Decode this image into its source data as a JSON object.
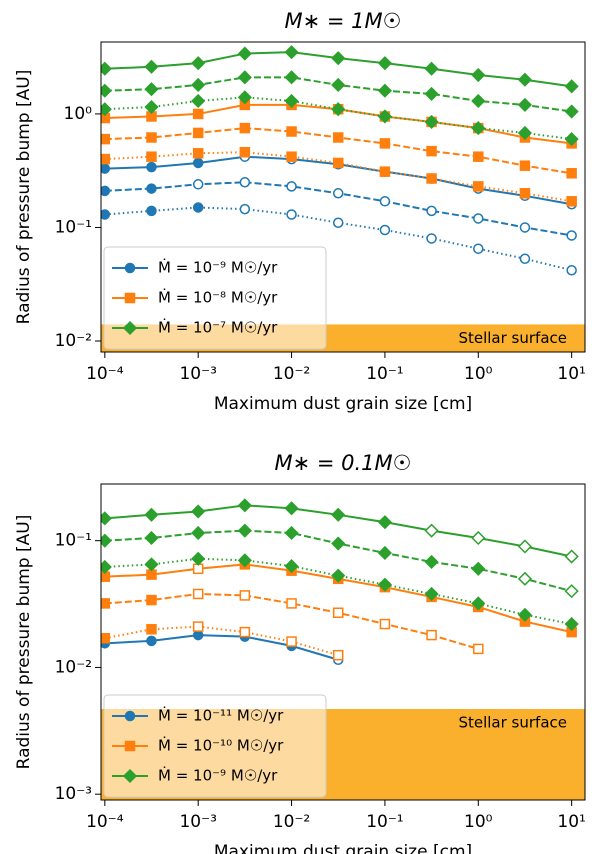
{
  "chart_data": [
    {
      "type": "line",
      "title": "M∗ = 1M☉",
      "xlabel": "Maximum dust grain size [cm]",
      "ylabel": "Radius of pressure bump [AU]",
      "xscale": "log",
      "yscale": "log",
      "legend": "lower left",
      "xlim": [
        9.1e-05,
        13.9
      ],
      "ylim": [
        0.008,
        4.3
      ],
      "xticks": [
        {
          "value": 0.0001,
          "label": "10⁻⁴"
        },
        {
          "value": 0.001,
          "label": "10⁻³"
        },
        {
          "value": 0.01,
          "label": "10⁻²"
        },
        {
          "value": 0.1,
          "label": "10⁻¹"
        },
        {
          "value": 1,
          "label": "10⁰"
        },
        {
          "value": 10,
          "label": "10¹"
        }
      ],
      "yticks": [
        {
          "value": 0.01,
          "label": "10⁻²"
        },
        {
          "value": 0.1,
          "label": "10⁻¹"
        },
        {
          "value": 1,
          "label": "10⁰"
        }
      ],
      "shaded_region": {
        "label": "Stellar surface",
        "y_max": 0.014,
        "color": "#fbb02d"
      },
      "x": [
        0.0001,
        0.000316,
        0.001,
        0.00316,
        0.01,
        0.0316,
        0.1,
        0.316,
        1,
        3.16,
        10
      ],
      "series": [
        {
          "name": "Ṁ = 10⁻⁹ M☉/yr",
          "color": "#1f77b4",
          "marker": "circle",
          "linestyle": "solid",
          "values": [
            0.33,
            0.34,
            0.37,
            0.42,
            0.4,
            0.36,
            0.31,
            0.27,
            0.22,
            0.19,
            0.16
          ],
          "filled": [
            true,
            true,
            true,
            false,
            false,
            false,
            false,
            false,
            false,
            false,
            false
          ]
        },
        {
          "color": "#1f77b4",
          "marker": "circle",
          "linestyle": "dashed",
          "values": [
            0.21,
            0.22,
            0.24,
            0.25,
            0.23,
            0.2,
            0.17,
            0.14,
            0.12,
            0.1,
            0.085
          ],
          "filled": [
            true,
            true,
            false,
            false,
            false,
            false,
            false,
            false,
            false,
            false,
            false
          ]
        },
        {
          "color": "#1f77b4",
          "marker": "circle",
          "linestyle": "dotted",
          "values": [
            0.13,
            0.14,
            0.15,
            0.145,
            0.13,
            0.11,
            0.095,
            0.08,
            0.065,
            0.053,
            0.042
          ],
          "filled": [
            true,
            true,
            true,
            false,
            false,
            false,
            false,
            false,
            false,
            false,
            false
          ]
        },
        {
          "name": "Ṁ = 10⁻⁸ M☉/yr",
          "color": "#ff7f0e",
          "marker": "square",
          "linestyle": "solid",
          "values": [
            0.92,
            0.95,
            1.0,
            1.2,
            1.2,
            1.1,
            0.95,
            0.85,
            0.75,
            0.62,
            0.55
          ],
          "filled": [
            true,
            true,
            true,
            true,
            true,
            true,
            true,
            true,
            true,
            true,
            true
          ]
        },
        {
          "color": "#ff7f0e",
          "marker": "square",
          "linestyle": "dashed",
          "values": [
            0.6,
            0.62,
            0.68,
            0.75,
            0.7,
            0.62,
            0.55,
            0.47,
            0.42,
            0.35,
            0.3
          ],
          "filled": [
            true,
            true,
            true,
            true,
            true,
            true,
            true,
            true,
            true,
            true,
            true
          ]
        },
        {
          "color": "#ff7f0e",
          "marker": "square",
          "linestyle": "dotted",
          "values": [
            0.4,
            0.42,
            0.45,
            0.46,
            0.42,
            0.37,
            0.31,
            0.27,
            0.23,
            0.2,
            0.17
          ],
          "filled": [
            true,
            true,
            true,
            true,
            true,
            true,
            true,
            true,
            true,
            true,
            true
          ]
        },
        {
          "name": "Ṁ = 10⁻⁷ M☉/yr",
          "color": "#2ca02c",
          "marker": "diamond",
          "linestyle": "solid",
          "values": [
            2.5,
            2.6,
            2.8,
            3.4,
            3.5,
            3.1,
            2.8,
            2.5,
            2.2,
            2.0,
            1.75
          ],
          "filled": [
            true,
            true,
            true,
            true,
            true,
            true,
            true,
            true,
            true,
            true,
            true
          ]
        },
        {
          "color": "#2ca02c",
          "marker": "diamond",
          "linestyle": "dashed",
          "values": [
            1.6,
            1.65,
            1.8,
            2.1,
            2.1,
            1.8,
            1.6,
            1.5,
            1.3,
            1.2,
            1.05
          ],
          "filled": [
            true,
            true,
            true,
            true,
            true,
            true,
            true,
            true,
            true,
            true,
            true
          ]
        },
        {
          "color": "#2ca02c",
          "marker": "diamond",
          "linestyle": "dotted",
          "values": [
            1.1,
            1.15,
            1.3,
            1.4,
            1.3,
            1.1,
            0.95,
            0.85,
            0.75,
            0.68,
            0.6
          ],
          "filled": [
            true,
            true,
            true,
            true,
            true,
            true,
            true,
            true,
            true,
            true,
            true
          ]
        }
      ]
    },
    {
      "type": "line",
      "title": "M∗ = 0.1M☉",
      "xlabel": "Maximum dust grain size [cm]",
      "ylabel": "Radius of pressure bump [AU]",
      "xscale": "log",
      "yscale": "log",
      "legend": "lower left",
      "xlim": [
        9.1e-05,
        13.9
      ],
      "ylim": [
        0.0009,
        0.28
      ],
      "xticks": [
        {
          "value": 0.0001,
          "label": "10⁻⁴"
        },
        {
          "value": 0.001,
          "label": "10⁻³"
        },
        {
          "value": 0.01,
          "label": "10⁻²"
        },
        {
          "value": 0.1,
          "label": "10⁻¹"
        },
        {
          "value": 1,
          "label": "10⁰"
        },
        {
          "value": 10,
          "label": "10¹"
        }
      ],
      "yticks": [
        {
          "value": 0.001,
          "label": "10⁻³"
        },
        {
          "value": 0.01,
          "label": "10⁻²"
        },
        {
          "value": 0.1,
          "label": "10⁻¹"
        }
      ],
      "shaded_region": {
        "label": "Stellar surface",
        "y_max": 0.0047,
        "color": "#fbb02d"
      },
      "x": [
        0.0001,
        0.000316,
        0.001,
        0.00316,
        0.01,
        0.0316,
        0.1,
        0.316,
        1,
        3.16,
        10
      ],
      "series": [
        {
          "name": "Ṁ = 10⁻¹¹ M☉/yr",
          "color": "#1f77b4",
          "marker": "circle",
          "linestyle": "solid",
          "values": [
            0.0155,
            0.0162,
            0.018,
            0.0175,
            0.0148,
            0.0115,
            null,
            null,
            null,
            null,
            null
          ],
          "filled": [
            true,
            true,
            true,
            true,
            true,
            false,
            false,
            false,
            false,
            false,
            false
          ]
        },
        {
          "name": "Ṁ = 10⁻¹⁰ M☉/yr",
          "color": "#ff7f0e",
          "marker": "square",
          "linestyle": "solid",
          "values": [
            0.052,
            0.054,
            0.06,
            0.065,
            0.058,
            0.05,
            0.043,
            0.036,
            0.03,
            0.023,
            0.019
          ],
          "filled": [
            true,
            true,
            false,
            true,
            true,
            true,
            true,
            true,
            true,
            true,
            true
          ]
        },
        {
          "color": "#ff7f0e",
          "marker": "square",
          "linestyle": "dashed",
          "values": [
            0.032,
            0.034,
            0.038,
            0.037,
            0.032,
            0.027,
            0.022,
            0.018,
            0.014,
            null,
            null
          ],
          "filled": [
            true,
            true,
            false,
            false,
            false,
            false,
            false,
            false,
            false,
            false,
            false
          ]
        },
        {
          "color": "#ff7f0e",
          "marker": "square",
          "linestyle": "dotted",
          "values": [
            0.017,
            0.02,
            0.021,
            0.019,
            0.016,
            0.0125,
            null,
            null,
            null,
            null,
            null
          ],
          "filled": [
            true,
            true,
            false,
            false,
            false,
            false,
            false,
            false,
            false,
            false,
            false
          ]
        },
        {
          "name": "Ṁ = 10⁻⁹ M☉/yr",
          "color": "#2ca02c",
          "marker": "diamond",
          "linestyle": "solid",
          "values": [
            0.15,
            0.16,
            0.17,
            0.19,
            0.18,
            0.16,
            0.14,
            0.12,
            0.105,
            0.09,
            0.075
          ],
          "filled": [
            true,
            true,
            true,
            true,
            true,
            true,
            true,
            false,
            false,
            false,
            false
          ]
        },
        {
          "color": "#2ca02c",
          "marker": "diamond",
          "linestyle": "dashed",
          "values": [
            0.1,
            0.105,
            0.115,
            0.12,
            0.115,
            0.095,
            0.08,
            0.068,
            0.06,
            0.05,
            0.04
          ],
          "filled": [
            true,
            true,
            true,
            true,
            true,
            true,
            true,
            true,
            true,
            false,
            false
          ]
        },
        {
          "color": "#2ca02c",
          "marker": "diamond",
          "linestyle": "dotted",
          "values": [
            0.062,
            0.065,
            0.072,
            0.07,
            0.063,
            0.053,
            0.045,
            0.038,
            0.032,
            0.026,
            0.022
          ],
          "filled": [
            true,
            true,
            true,
            true,
            true,
            true,
            true,
            true,
            true,
            true,
            true
          ]
        }
      ]
    }
  ]
}
